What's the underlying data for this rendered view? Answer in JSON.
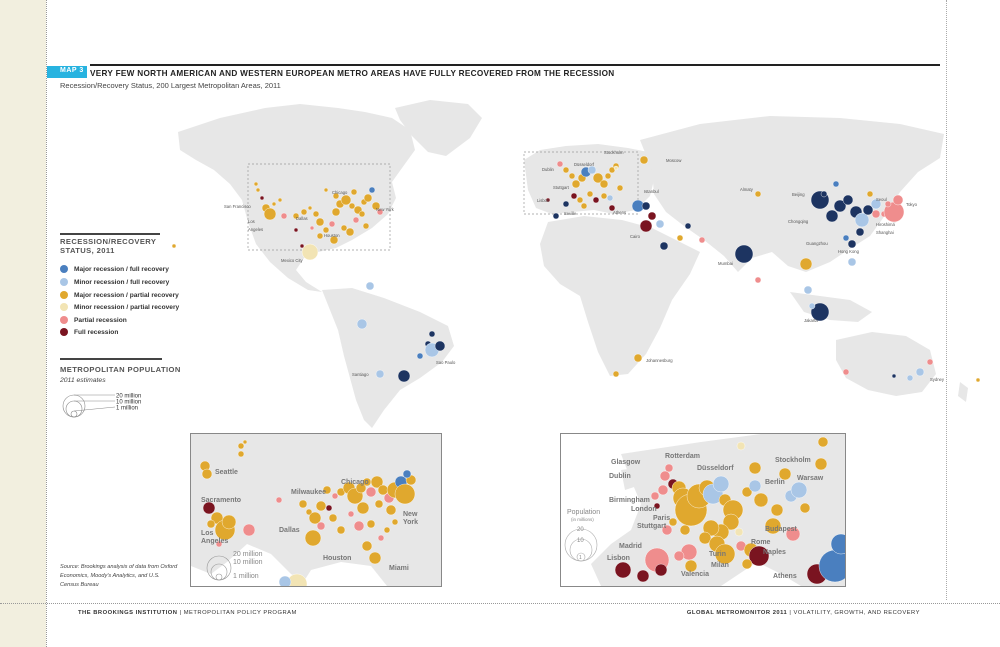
{
  "header": {
    "tag": "MAP 3",
    "title": "VERY FEW NORTH AMERICAN AND WESTERN EUROPEAN METRO AREAS HAVE FULLY RECOVERED FROM THE RECESSION",
    "subtitle": "Recession/Recovery Status, 200 Largest Metropolitan Areas, 2011"
  },
  "legend": {
    "status_title_line1": "RECESSION/RECOVERY",
    "status_title_line2": "STATUS, 2011",
    "items": [
      {
        "label": "Major recession / full recovery",
        "color": "#4a7fbf"
      },
      {
        "label": "Minor recession / full recovery",
        "color": "#a9c6e6"
      },
      {
        "label": "Major recession / partial recovery",
        "color": "#e0a82e"
      },
      {
        "label": "Minor recession / partial recovery",
        "color": "#f2e4b4"
      },
      {
        "label": "Partial recession",
        "color": "#ef8d8d"
      },
      {
        "label": "Full recession",
        "color": "#7a1420"
      }
    ],
    "population_title": "METROPOLITAN POPULATION",
    "population_subtitle": "2011 estimates",
    "population_sizes": [
      "20 million",
      "10 million",
      "1 million"
    ]
  },
  "colors": {
    "major_full": "#4a7fbf",
    "minor_full": "#a9c6e6",
    "major_partial": "#e0a82e",
    "minor_partial": "#f2e4b4",
    "partial_recession": "#ef8d8d",
    "full_recession": "#7a1420",
    "dark_navy": "#1d3461",
    "land": "#e7e7e7"
  },
  "world_labels": {
    "san_francisco": "San Francisco",
    "los_angeles": "Los\nAngeles",
    "dallas": "Dallas",
    "chicago": "Chicago",
    "new_york": "New York",
    "houston": "Houston",
    "mexico_city": "Mexico City",
    "sao_paulo": "Sao Paulo",
    "santiago": "Santiago",
    "stockholm": "Stockholm",
    "moscow": "Moscow",
    "dublin": "Dublin",
    "dusseldorf": "Düsseldorf",
    "stuttgart": "Stuttgart",
    "lisbon": "Lisbon",
    "seville": "Seville",
    "athens": "Athens",
    "istanbul": "Istanbul",
    "cairo": "Cairo",
    "almaty": "Almaty",
    "beijing": "Beijing",
    "seoul": "Seoul",
    "tokyo": "Tokyo",
    "chongqing": "Chongqing",
    "shanghai": "Shanghai",
    "hiroshima": "Hiroshima",
    "guangzhou": "Guangzhou",
    "hong_kong": "Hong Kong",
    "mumbai": "Mumbai",
    "jakarta": "Jakarta",
    "johannesburg": "Johannesburg",
    "sydney": "Sydney"
  },
  "us_inset": {
    "labels": {
      "seattle": "Seattle",
      "sacramento": "Sacramento",
      "los_angeles": "Los\nAngeles",
      "milwaukee": "Milwaukee",
      "chicago": "Chicago",
      "dallas": "Dallas",
      "houston": "Houston",
      "miami": "Miami",
      "new_york": "New\nYork"
    },
    "pop_sizes": [
      "20 million",
      "10 million",
      "1 million"
    ]
  },
  "europe_inset": {
    "labels": {
      "glasgow": "Glasgow",
      "rotterdam": "Rotterdam",
      "dublin": "Dublin",
      "dusseldorf": "Düsseldorf",
      "stockholm": "Stockholm",
      "warsaw": "Warsaw",
      "berlin": "Berlin",
      "birmingham": "Birmingham",
      "london": "London",
      "paris": "Paris",
      "stuttgart": "Stuttgart",
      "budapest": "Budapest",
      "madrid": "Madrid",
      "rome": "Rome",
      "naples": "Naples",
      "turin": "Turin",
      "milan": "Milan",
      "lisbon": "Lisbon",
      "valencia": "Valencia",
      "athens": "Athens"
    },
    "pop_title": "Population",
    "pop_unit": "(in millions)",
    "pop_sizes": [
      "20",
      "10",
      "1"
    ]
  },
  "source": "Source: Brookings analysis of data from Oxford Economics, Moody's Analytics, and U.S. Census Bureau",
  "footer": {
    "left_bold": "THE BROOKINGS INSTITUTION",
    "left_rest": " | METROPOLITAN POLICY PROGRAM",
    "right_bold": "GLOBAL METROMONITOR 2011",
    "right_rest": " | VOLATILITY, GROWTH, AND RECOVERY"
  }
}
